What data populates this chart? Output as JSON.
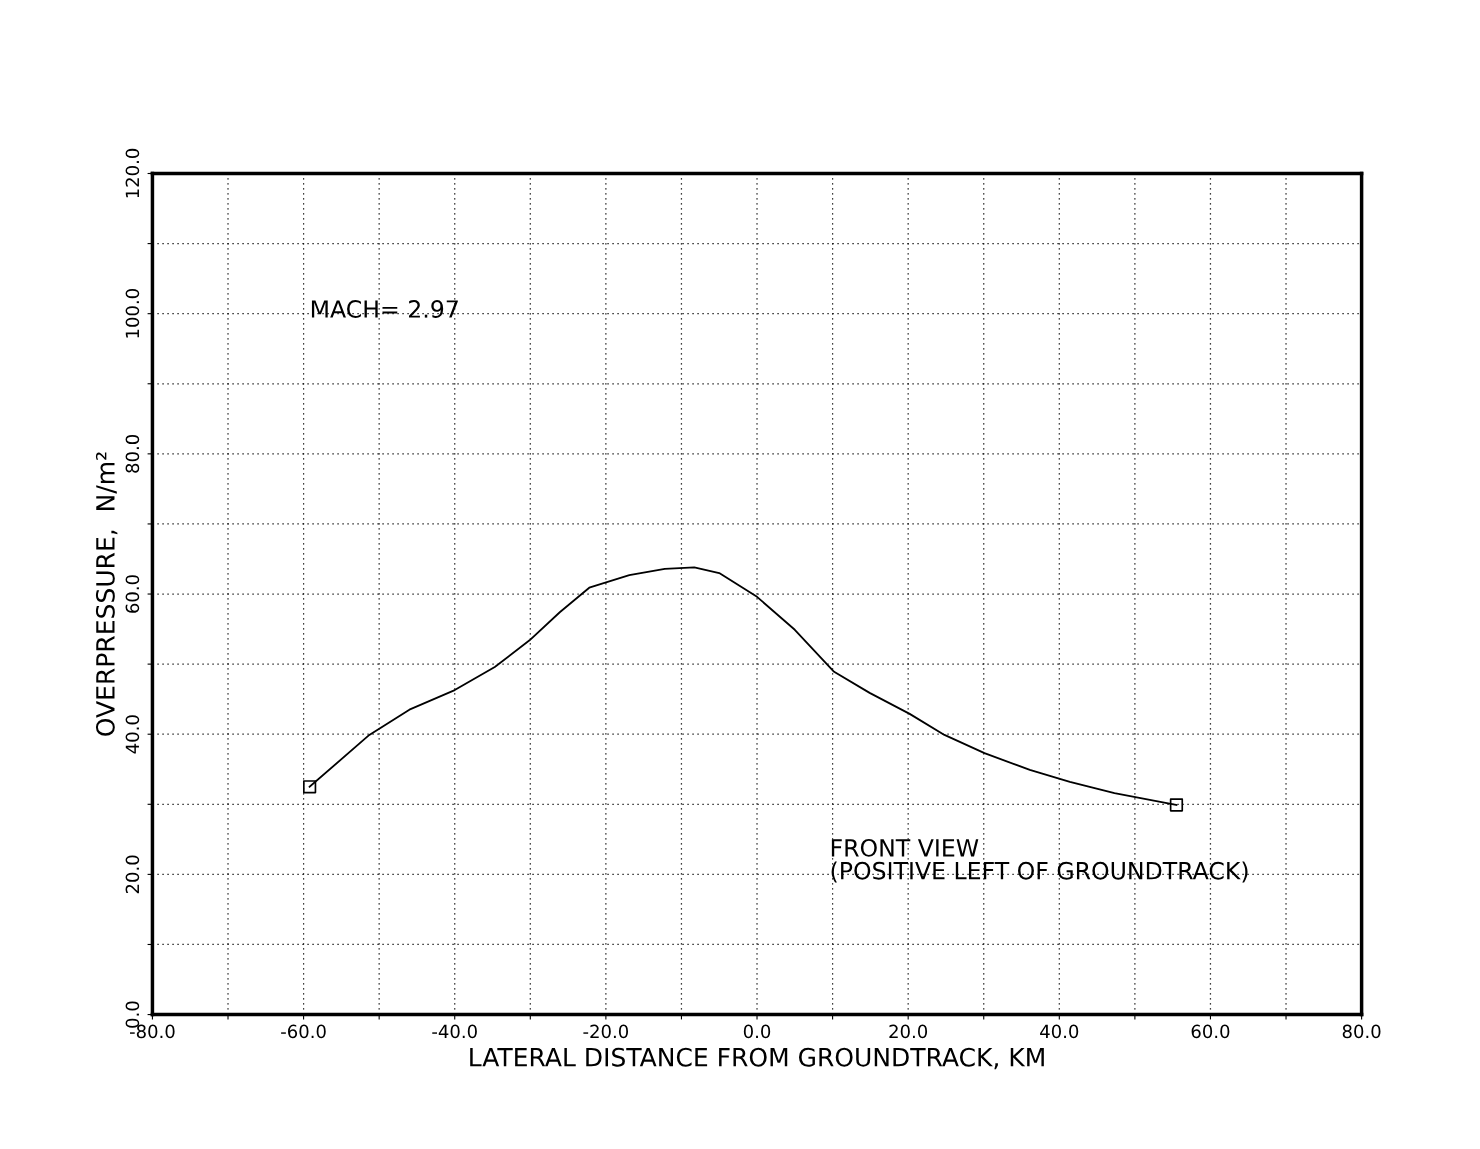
{
  "chart_data": {
    "type": "line",
    "xlabel": "LATERAL DISTANCE FROM GROUNDTRACK, KM",
    "ylabel": "OVERPRESSURE,  N/m²",
    "annotations": [
      "MACH= 2.97",
      "FRONT VIEW\n(POSITIVE LEFT OF GROUNDTRACK)"
    ],
    "series": [
      {
        "color": "#000000",
        "marker": "none",
        "line_style": "solid",
        "x": [
          -59.2,
          -51.3,
          -46.0,
          -40.0,
          -34.7,
          -30.1,
          -26.1,
          -22.2,
          -16.9,
          -12.2,
          -8.3,
          -5.0,
          0.0,
          5.0,
          10.2,
          14.9,
          20.2,
          24.8,
          30.1,
          36.1,
          41.4,
          47.3,
          55.5
        ],
        "values": [
          32.5,
          39.9,
          43.5,
          46.3,
          49.6,
          53.4,
          57.4,
          60.9,
          62.7,
          63.6,
          63.8,
          63.0,
          59.6,
          54.9,
          48.9,
          45.9,
          42.9,
          39.9,
          37.3,
          34.9,
          33.2,
          31.6,
          29.9
        ]
      },
      {
        "type": "scatter",
        "color": "#000000",
        "marker": "square",
        "x": [
          -59.2,
          55.5
        ],
        "values": [
          32.5,
          29.9
        ]
      }
    ],
    "xlim": [
      -80,
      80
    ],
    "xticks": [
      {
        "value": -80,
        "label": "-80.0"
      },
      {
        "value": -70,
        "label": null
      },
      {
        "value": -60,
        "label": "-60.0"
      },
      {
        "value": -50,
        "label": null
      },
      {
        "value": -40,
        "label": "-40.0"
      },
      {
        "value": -30,
        "label": null
      },
      {
        "value": -20,
        "label": "-20.0"
      },
      {
        "value": -10,
        "label": null
      },
      {
        "value": 0,
        "label": "0.0"
      },
      {
        "value": 10,
        "label": null
      },
      {
        "value": 20,
        "label": "20.0"
      },
      {
        "value": 30,
        "label": null
      },
      {
        "value": 40,
        "label": "40.0"
      },
      {
        "value": 50,
        "label": null
      },
      {
        "value": 60,
        "label": "60.0"
      },
      {
        "value": 70,
        "label": null
      },
      {
        "value": 80,
        "label": "80.0"
      }
    ],
    "ylim": [
      0,
      120
    ],
    "yticks": [
      {
        "value": 0,
        "label": "0.0"
      },
      {
        "value": 10,
        "label": null
      },
      {
        "value": 20,
        "label": "20.0"
      },
      {
        "value": 30,
        "label": null
      },
      {
        "value": 40,
        "label": "40.0"
      },
      {
        "value": 50,
        "label": null
      },
      {
        "value": 60,
        "label": "60.0"
      },
      {
        "value": 70,
        "label": null
      },
      {
        "value": 80,
        "label": "80.0"
      },
      {
        "value": 90,
        "label": null
      },
      {
        "value": 100,
        "label": "100.0"
      },
      {
        "value": 110,
        "label": null
      },
      {
        "value": 120,
        "label": "120.0"
      }
    ],
    "grid": true,
    "legend": false
  }
}
